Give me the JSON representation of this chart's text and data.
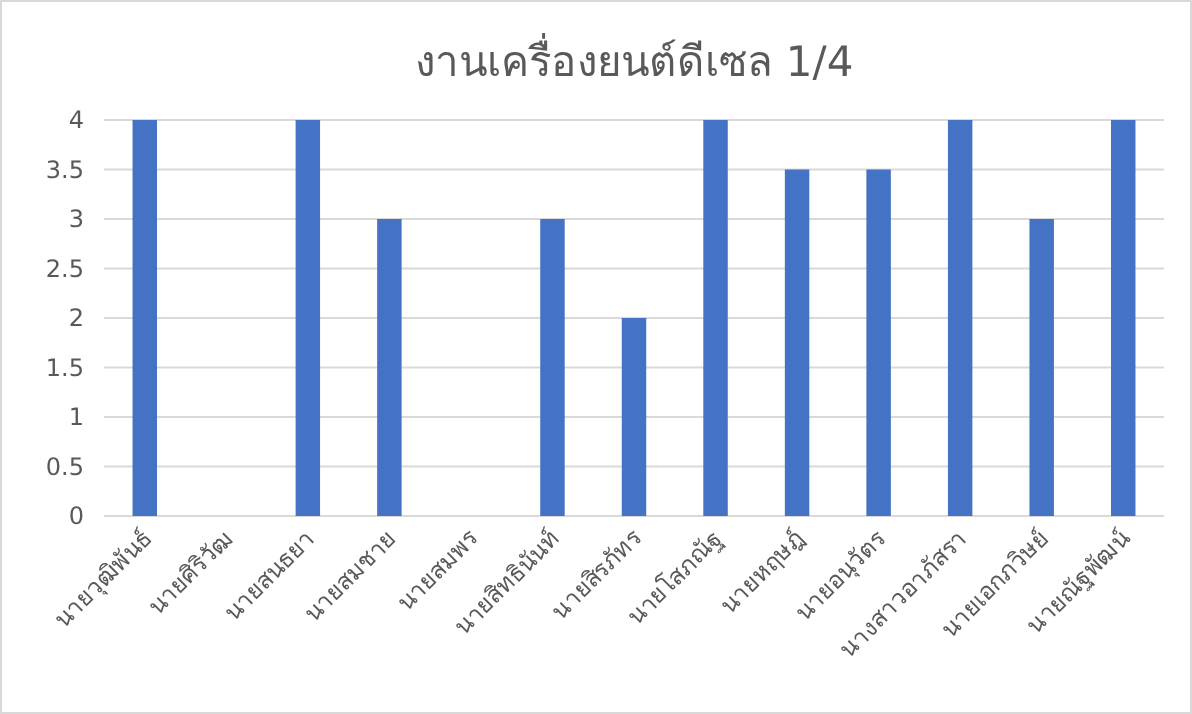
{
  "chart_data": {
    "type": "bar",
    "title": "งานเครื่องยนต์ดีเซล 1/4",
    "categories": [
      "นายวุฒิพันธ์",
      "นายศิริวัฒ",
      "นายสนธยา",
      "นายสมชาย",
      "นายสมพร",
      "นายสิทธินันท์",
      "นายสิรภัทร",
      "นายโสภณัฐ",
      "นายหฤษฎ์",
      "นายอนุวัตร",
      "นางสาวอาภัสรา",
      "นายเอกภวิษย์",
      "นายณัฐพัฒน์"
    ],
    "values": [
      4,
      0,
      4,
      3,
      0,
      3,
      2,
      4,
      3.5,
      3.5,
      4,
      3,
      4
    ],
    "color": "#4472c4",
    "ylim": [
      0,
      4
    ],
    "yticks": [
      0,
      0.5,
      1,
      1.5,
      2,
      2.5,
      3,
      3.5,
      4
    ],
    "grid": "y"
  }
}
